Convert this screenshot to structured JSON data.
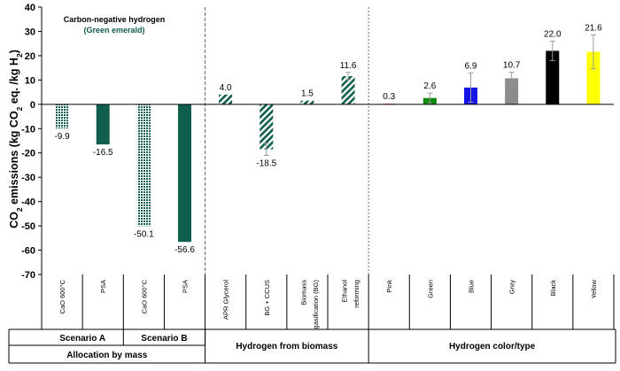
{
  "chart_data": {
    "type": "bar",
    "ylabel_parts": [
      "CO",
      "2",
      " emissions (kg CO",
      "2",
      " eq. /kg H",
      "2",
      ")"
    ],
    "ylim": [
      -70,
      40
    ],
    "yticks": [
      40,
      30,
      20,
      10,
      0,
      -10,
      -20,
      -30,
      -40,
      -50,
      -60,
      -70
    ],
    "annotation": {
      "line1": "Carbon-negative hydrogen",
      "line2": "(Green emerald)"
    },
    "categories": [
      "CaO 600°C",
      "PSA",
      "CaO 600°C",
      "PSA",
      "APR Glycerol",
      "BG + CCUS",
      "Biomass gasification (BG)",
      "Ethanol reforming",
      "Pink",
      "Green",
      "Blue",
      "Grey",
      "Black",
      "Yellow"
    ],
    "category_lines": [
      [
        "CaO 600°C"
      ],
      [
        "PSA"
      ],
      [
        "CaO 600°C"
      ],
      [
        "PSA"
      ],
      [
        "APR Glycerol"
      ],
      [
        "BG + CCUS"
      ],
      [
        "Biomass",
        "gasification (BG)"
      ],
      [
        "Ethanol",
        "reforming"
      ],
      [
        "Pink"
      ],
      [
        "Green"
      ],
      [
        "Blue"
      ],
      [
        "Grey"
      ],
      [
        "Black"
      ],
      [
        "Yellow"
      ]
    ],
    "values": [
      -9.9,
      -16.5,
      -50.1,
      -56.6,
      4.0,
      -18.5,
      1.5,
      11.6,
      0.3,
      2.6,
      6.9,
      10.7,
      22.0,
      21.6
    ],
    "value_labels": [
      "-9.9",
      "-16.5",
      "-50.1",
      "-56.6",
      "4.0",
      "-18.5",
      "1.5",
      "11.6",
      "0.3",
      "2.6",
      "6.9",
      "10.7",
      "22.0",
      "21.6"
    ],
    "errors": [
      null,
      null,
      null,
      null,
      null,
      2.5,
      null,
      1.5,
      null,
      2.0,
      6.0,
      2.5,
      4.0,
      7.0
    ],
    "fills": [
      "dots",
      "solid",
      "dots",
      "solid",
      "hatch",
      "hatch",
      "hatch",
      "hatch",
      "solid",
      "solid",
      "solid",
      "solid",
      "solid",
      "solid"
    ],
    "colors": [
      "#0f5e4e",
      "#0f5e4e",
      "#0f5e4e",
      "#0f5e4e",
      "#0f5e4e",
      "#0f5e4e",
      "#0f5e4e",
      "#0f5e4e",
      "#ff66cc",
      "#0a8a0a",
      "#1414e6",
      "#8c8c8c",
      "#000000",
      "#ffff00"
    ],
    "groups_row1": [
      {
        "label": "Scenario A",
        "start": 0,
        "end": 2
      },
      {
        "label": "Scenario B",
        "start": 2,
        "end": 4
      },
      {
        "label": "",
        "start": 4,
        "end": 8
      },
      {
        "label": "",
        "start": 8,
        "end": 14
      }
    ],
    "groups_row2": [
      {
        "label": "Allocation by mass",
        "start": 0,
        "end": 4
      },
      {
        "label": "Hydrogen from biomass",
        "start": 4,
        "end": 8
      },
      {
        "label": "Hydrogen color/type",
        "start": 8,
        "end": 14
      }
    ],
    "separators": [
      4,
      8
    ]
  },
  "colors": {
    "annotation_accent": "#0f5e4e",
    "axis": "#000000",
    "separator": "#666666"
  }
}
